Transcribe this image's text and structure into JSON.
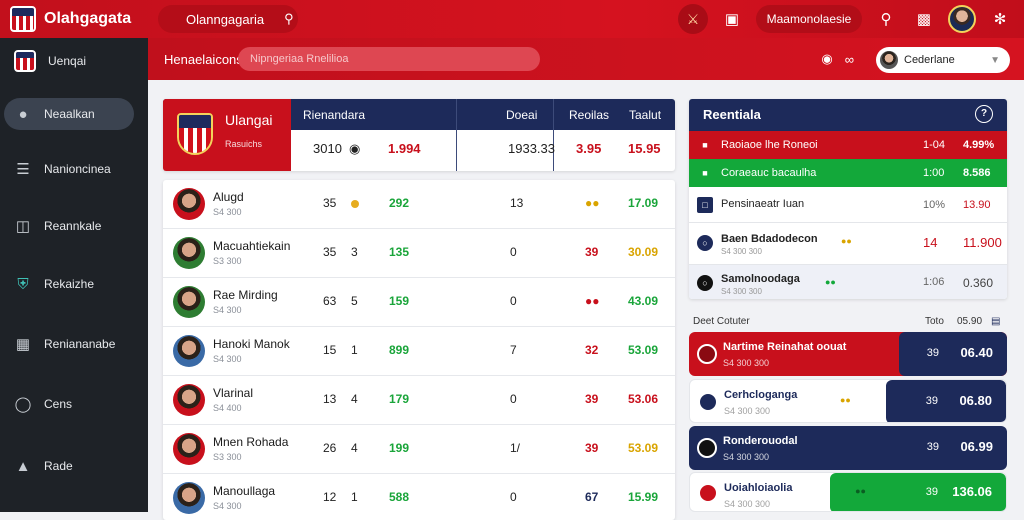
{
  "topbar": {
    "brand": "Olahgagata",
    "search_text": "Olanngagaria",
    "pill_label": "Maamonolaesie"
  },
  "sidebar": {
    "items": [
      {
        "label": "Uenqai",
        "icon": "crest-icon"
      },
      {
        "label": "Neaalkan",
        "icon": "apple-icon"
      },
      {
        "label": "Nanioncinea",
        "icon": "chat-icon"
      },
      {
        "label": "Reannkale",
        "icon": "book-icon"
      },
      {
        "label": "Rekaizhe",
        "icon": "shield-icon"
      },
      {
        "label": "Reniananabe",
        "icon": "grid-icon"
      },
      {
        "label": "Cens",
        "icon": "coin-icon"
      },
      {
        "label": "Rade",
        "icon": "user-icon"
      }
    ]
  },
  "subbar": {
    "title": "Henaelaicons",
    "search_placeholder": "Nipngeriaa Rnelilioa",
    "user_name": "Cederlane"
  },
  "team": {
    "name": "Ulangai",
    "subtitle": "Rasuichs",
    "headers": [
      "Rienandara",
      "Doeai",
      "Reoilas",
      "Taalut"
    ],
    "values": [
      "3010",
      "1.994",
      "1933.33",
      "3.95",
      "15.95"
    ]
  },
  "players": [
    {
      "name": "Alugd",
      "sub": "S4 300",
      "c1": "35",
      "c2": "",
      "v1": "292",
      "v2": "13",
      "v3": "",
      "v4": "17.09"
    },
    {
      "name": "Macuahtiekain",
      "sub": "S3 300",
      "c1": "35",
      "c2": "3",
      "v1": "135",
      "v2": "0",
      "v3": "39",
      "v4": "30.09"
    },
    {
      "name": "Rae Mirding",
      "sub": "S4 300",
      "c1": "63",
      "c2": "5",
      "v1": "159",
      "v2": "0",
      "v3": "",
      "v4": "43.09"
    },
    {
      "name": "Hanoki Manok",
      "sub": "S4 300",
      "c1": "15",
      "c2": "1",
      "v1": "899",
      "v2": "7",
      "v3": "32",
      "v4": "53.09"
    },
    {
      "name": "Vlarinal",
      "sub": "S4 400",
      "c1": "13",
      "c2": "4",
      "v1": "179",
      "v2": "0",
      "v3": "39",
      "v4": "53.06"
    },
    {
      "name": "Mnen Rohada",
      "sub": "S3 300",
      "c1": "26",
      "c2": "4",
      "v1": "199",
      "v2": "1/",
      "v3": "39",
      "v4": "53.09"
    },
    {
      "name": "Manoullaga",
      "sub": "S4 300",
      "c1": "12",
      "c2": "1",
      "v1": "588",
      "v2": "0",
      "v3": "67",
      "v4": "15.99"
    }
  ],
  "right_panel": {
    "title": "Reentiala",
    "rows": [
      {
        "label": "Raoiaoe lhe Roneoi",
        "c1": "1-04",
        "c2": "4.99%"
      },
      {
        "label": "Coraeauc bacaulha",
        "c1": "1:00",
        "c2": "8.586"
      },
      {
        "label": "Pensinaeatr Iuan",
        "c1": "10%",
        "c2": "13.90"
      },
      {
        "label": "Baen Bdadodecon",
        "c1": "14",
        "c2": "11.900"
      },
      {
        "label": "Samolnoodaga",
        "c1": "1:06",
        "c2": "0.360"
      }
    ],
    "row_subs": [
      "",
      "",
      "",
      "S4 300 300",
      "S4 300 300"
    ]
  },
  "section": {
    "left": "Deet Cotuter",
    "c1": "Toto",
    "c2": "05.90"
  },
  "bets": [
    {
      "title": "Nartime Reinahat oouat",
      "sub": "S4 300 300",
      "o1": "39",
      "o2": "06.40"
    },
    {
      "title": "Cerhcloganga",
      "sub": "S4 300 300",
      "o1": "39",
      "o2": "06.80"
    },
    {
      "title": "Ronderouodal",
      "sub": "S4 300 300",
      "o1": "39",
      "o2": "06.99"
    },
    {
      "title": "Uoiahloiaolia",
      "sub": "S4 300 300",
      "o1": "39",
      "o2": "136.06"
    }
  ],
  "colors": {
    "brand_red": "#c8101c",
    "navy": "#1d2a5a",
    "green": "#13a83a",
    "sidebar_bg": "#1e2227"
  }
}
